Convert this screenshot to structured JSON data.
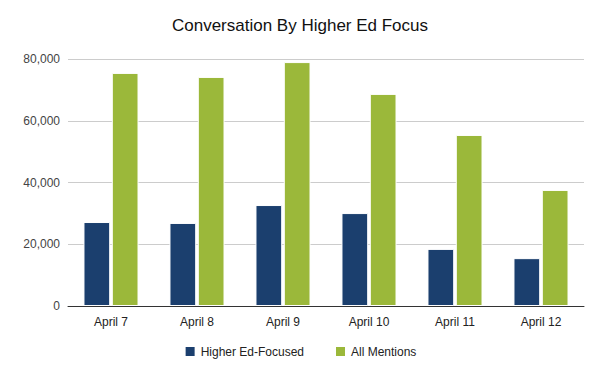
{
  "chart_data": {
    "type": "bar",
    "title": "Conversation By Higher Ed Focus",
    "categories": [
      "April 7",
      "April 8",
      "April 9",
      "April 10",
      "April 11",
      "April 12"
    ],
    "series": [
      {
        "name": "Higher Ed-Focused",
        "color": "#1b3f6e",
        "values": [
          27200,
          26900,
          32700,
          30100,
          18500,
          15500
        ]
      },
      {
        "name": "All Mentions",
        "color": "#9bb83a",
        "values": [
          75500,
          74200,
          79000,
          68700,
          55400,
          37600
        ]
      }
    ],
    "ylim": [
      0,
      80000
    ],
    "yticks": [
      0,
      {
        "value": 20000,
        "label": "20,000"
      },
      {
        "value": 40000,
        "label": "40,000"
      },
      {
        "value": 60000,
        "label": "60,000"
      },
      {
        "value": 80000,
        "label": "80,000"
      }
    ],
    "grid": true,
    "legend": "bottom"
  }
}
